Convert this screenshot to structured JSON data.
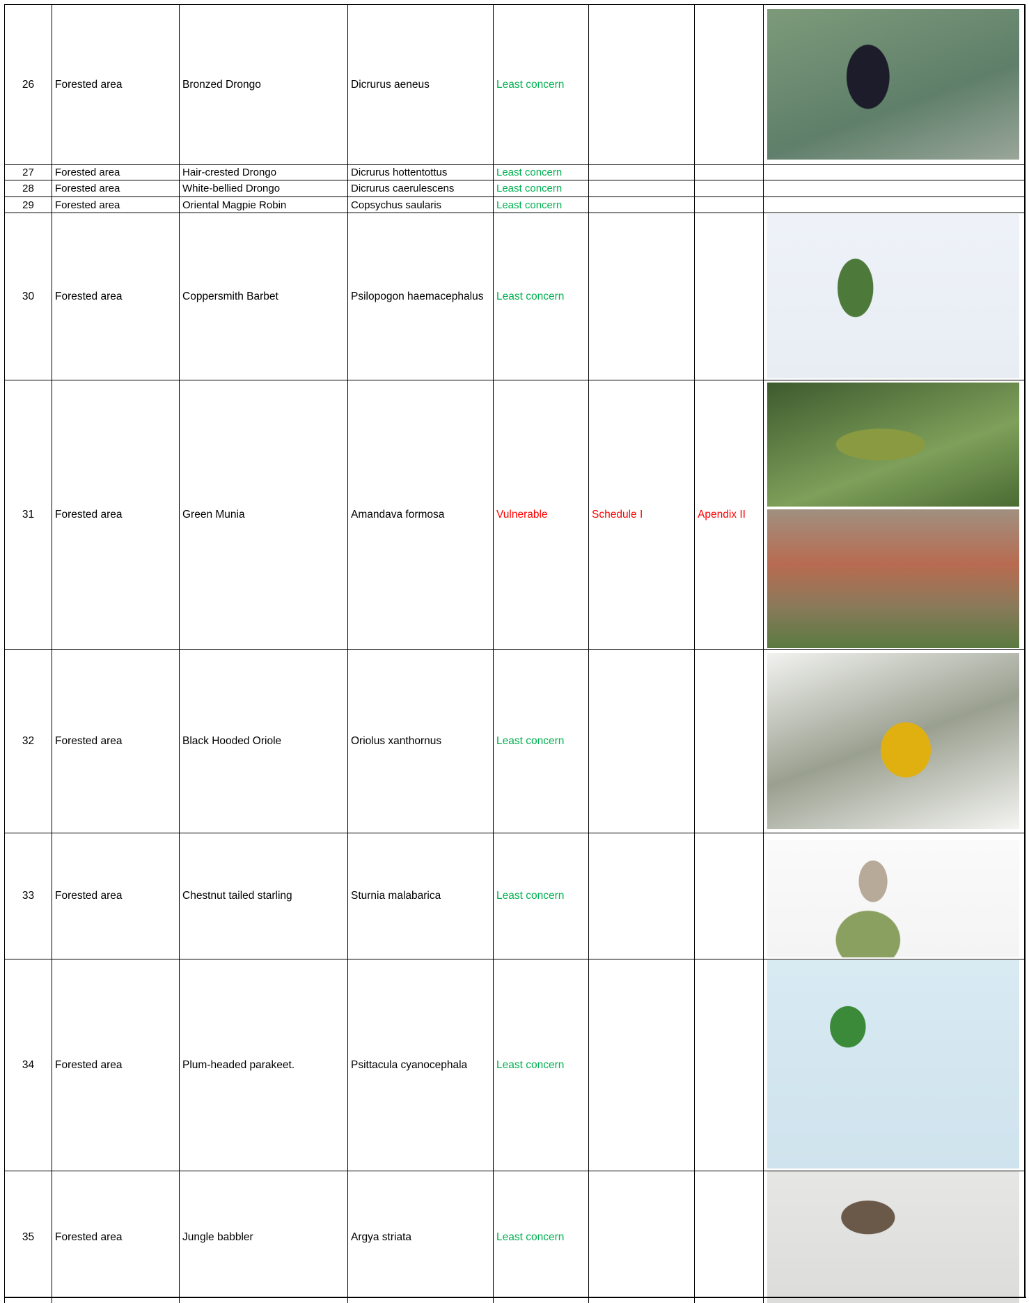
{
  "table": {
    "rows": [
      {
        "no": "26",
        "area": "Forested area",
        "common": "Bronzed Drongo",
        "scientific": "Dicrurus aeneus",
        "status": "Least concern",
        "status_color": "#00b050",
        "schedule": null,
        "appendix": null
      },
      {
        "no": "27",
        "area": "Forested area",
        "common": "Hair-crested Drongo",
        "scientific": "Dicrurus hottentottus",
        "status": "Least concern",
        "status_color": "#00b050",
        "schedule": null,
        "appendix": null
      },
      {
        "no": "28",
        "area": "Forested area",
        "common": "White-bellied Drongo",
        "scientific": "Dicrurus caerulescens",
        "status": "Least concern",
        "status_color": "#00b050",
        "schedule": null,
        "appendix": null
      },
      {
        "no": "29",
        "area": "Forested area",
        "common": "Oriental Magpie Robin",
        "scientific": "Copsychus saularis",
        "status": "Least concern",
        "status_color": "#00b050",
        "schedule": null,
        "appendix": null
      },
      {
        "no": "30",
        "area": "Forested area",
        "common": "Coppersmith Barbet",
        "scientific": "Psilopogon haemacephalus",
        "status": "Least concern",
        "status_color": "#00b050",
        "schedule": null,
        "appendix": null
      },
      {
        "no": "31",
        "area": "Forested area",
        "common": "Green Munia",
        "scientific": "Amandava formosa",
        "status": "Vulnerable",
        "status_color": "#ff0000",
        "schedule": "Schedule I",
        "appendix": "Apendix II"
      },
      {
        "no": "32",
        "area": "Forested area",
        "common": "Black Hooded Oriole",
        "scientific": "Oriolus xanthornus",
        "status": "Least concern",
        "status_color": "#00b050",
        "schedule": null,
        "appendix": null
      },
      {
        "no": "33",
        "area": "Forested area",
        "common": "Chestnut tailed starling",
        "scientific": "Sturnia malabarica",
        "status": "Least concern",
        "status_color": "#00b050",
        "schedule": null,
        "appendix": null
      },
      {
        "no": "34",
        "area": "Forested area",
        "common": "Plum-headed parakeet.",
        "scientific": "Psittacula cyanocephala",
        "status": "Least concern",
        "status_color": "#00b050",
        "schedule": null,
        "appendix": null
      },
      {
        "no": "35",
        "area": "Forested area",
        "common": "Jungle babbler",
        "scientific": "Argya striata",
        "status": "Least concern",
        "status_color": "#00b050",
        "schedule": null,
        "appendix": null
      }
    ]
  }
}
